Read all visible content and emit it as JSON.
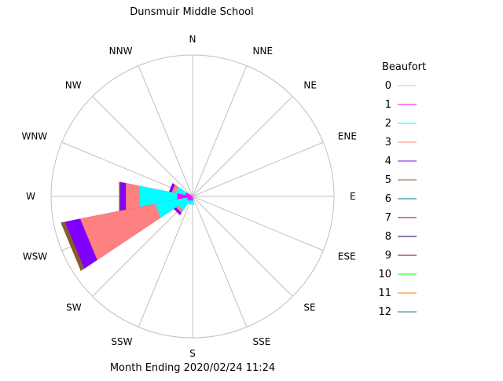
{
  "chart_data": {
    "type": "wind-rose",
    "title": "Dunsmuir Middle School",
    "footer": "Month Ending 2020/02/24 11:24",
    "directions": [
      "N",
      "NNE",
      "NE",
      "ENE",
      "E",
      "ESE",
      "SE",
      "SSE",
      "S",
      "SSW",
      "SW",
      "WSW",
      "W",
      "WNW",
      "NW",
      "NNW"
    ],
    "legend": {
      "title": "Beaufort",
      "items": [
        {
          "label": "0",
          "color": "#c0c0c0"
        },
        {
          "label": "1",
          "color": "#ff00ff"
        },
        {
          "label": "2",
          "color": "#00ffff"
        },
        {
          "label": "3",
          "color": "#ff8080"
        },
        {
          "label": "4",
          "color": "#8000ff"
        },
        {
          "label": "5",
          "color": "#8b5a2b"
        },
        {
          "label": "6",
          "color": "#008080"
        },
        {
          "label": "7",
          "color": "#a00000"
        },
        {
          "label": "8",
          "color": "#000080"
        },
        {
          "label": "9",
          "color": "#800000"
        },
        {
          "label": "10",
          "color": "#00ff00"
        },
        {
          "label": "11",
          "color": "#ff8000"
        },
        {
          "label": "12",
          "color": "#008b8b"
        }
      ]
    },
    "rmax": 100,
    "petals": [
      {
        "direction": "W",
        "segments": [
          {
            "beaufort": 1,
            "to": 11
          },
          {
            "beaufort": 2,
            "to": 38
          },
          {
            "beaufort": 3,
            "to": 48
          },
          {
            "beaufort": 4,
            "to": 52
          },
          {
            "beaufort": 5,
            "to": 53
          }
        ]
      },
      {
        "direction": "WSW",
        "segments": [
          {
            "beaufort": 1,
            "to": 4
          },
          {
            "beaufort": 2,
            "to": 27
          },
          {
            "beaufort": 3,
            "to": 81
          },
          {
            "beaufort": 4,
            "to": 92
          },
          {
            "beaufort": 5,
            "to": 95
          }
        ]
      },
      {
        "direction": "SW",
        "segments": [
          {
            "beaufort": 1,
            "to": 4
          },
          {
            "beaufort": 2,
            "to": 12
          },
          {
            "beaufort": 3,
            "to": 14
          },
          {
            "beaufort": 4,
            "to": 16
          }
        ]
      },
      {
        "direction": "WNW",
        "segments": [
          {
            "beaufort": 1,
            "to": 5
          },
          {
            "beaufort": 2,
            "to": 12
          },
          {
            "beaufort": 3,
            "to": 15
          },
          {
            "beaufort": 4,
            "to": 17
          }
        ]
      },
      {
        "direction": "S",
        "segments": [
          {
            "beaufort": 1,
            "to": 3
          },
          {
            "beaufort": 2,
            "to": 6
          }
        ]
      },
      {
        "direction": "SSW",
        "segments": [
          {
            "beaufort": 1,
            "to": 3
          },
          {
            "beaufort": 2,
            "to": 6
          }
        ]
      }
    ]
  }
}
